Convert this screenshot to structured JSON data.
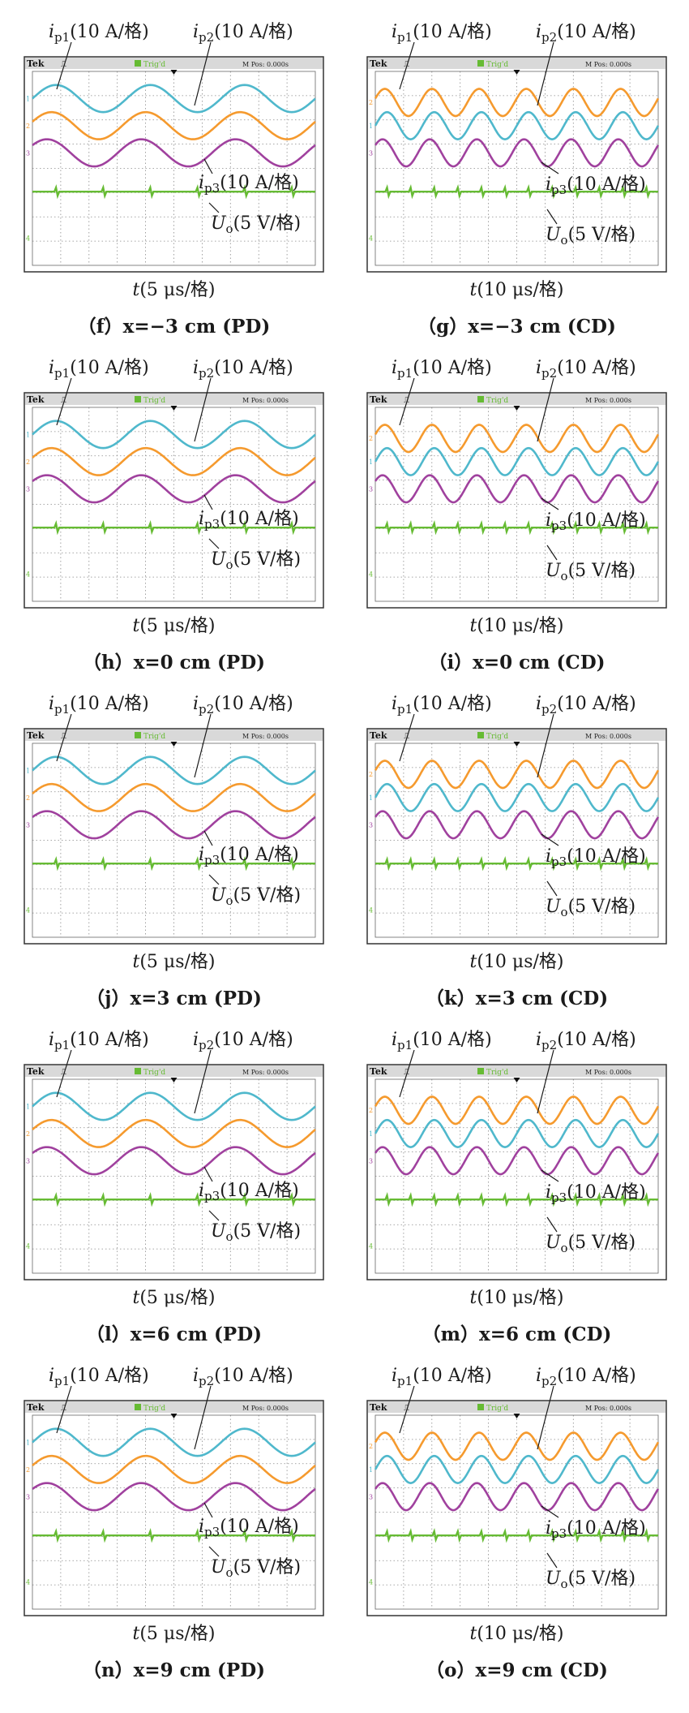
{
  "colors": {
    "ch1": "#4fb8cc",
    "ch2": "#f59a2e",
    "ch3": "#a0419e",
    "ch4": "#66bb33",
    "screen_bg": "#ffffff",
    "status_bar": "#d9d9d9",
    "grid": "#8a8a8a",
    "frame": "#333333"
  },
  "scope_ui": {
    "brand": "Tek",
    "trigger_status": "Trig'd",
    "pulse_glyph": "⎍",
    "ch1_marker": "1",
    "ch2_marker": "2",
    "ch3_marker": "3",
    "ch4_marker": "4"
  },
  "labels": {
    "ip1_main": "i",
    "ip1_sub": "p1",
    "ip1_rest": "(10 A/格)",
    "ip2_main": "i",
    "ip2_sub": "p2",
    "ip2_rest": "(10 A/格)",
    "ip3_main": "i",
    "ip3_sub": "p3",
    "ip3_rest": "(10 A/格)",
    "uo_main": "U",
    "uo_sub": "o",
    "uo_rest": "(5 V/格)"
  },
  "panels": [
    {
      "id": "f",
      "caption": "（f）x=−3 cm (PD)",
      "time_main": "t",
      "time_rest": "(5 μs/格)",
      "mpos": "M Pos: 0.000s",
      "mode": "PD"
    },
    {
      "id": "g",
      "caption": "（g）x=−3 cm (CD)",
      "time_main": "t",
      "time_rest": "(10 μs/格)",
      "mpos": "M Pos: 0.000s",
      "mode": "CD"
    },
    {
      "id": "h",
      "caption": "（h）x=0 cm (PD)",
      "time_main": "t",
      "time_rest": "(5 μs/格)",
      "mpos": "M Pos: 0.000s",
      "mode": "PD"
    },
    {
      "id": "i",
      "caption": "（i）x=0 cm (CD)",
      "time_main": "t",
      "time_rest": "(10 μs/格)",
      "mpos": "M Pos: 0.000s",
      "mode": "CD"
    },
    {
      "id": "j",
      "caption": "（j）x=3 cm (PD)",
      "time_main": "t",
      "time_rest": "(5 μs/格)",
      "mpos": "M Pos: 0.000s",
      "mode": "PD"
    },
    {
      "id": "k",
      "caption": "（k）x=3 cm (CD)",
      "time_main": "t",
      "time_rest": "(10 μs/格)",
      "mpos": "M Pos: 0.000s",
      "mode": "CD"
    },
    {
      "id": "l",
      "caption": "（l）x=6 cm (PD)",
      "time_main": "t",
      "time_rest": "(5 μs/格)",
      "mpos": "M Pos: 0.000s",
      "mode": "PD"
    },
    {
      "id": "m",
      "caption": "（m）x=6 cm (CD)",
      "time_main": "t",
      "time_rest": "(10 μs/格)",
      "mpos": "M Pos: 0.000s",
      "mode": "CD"
    },
    {
      "id": "n",
      "caption": "（n）x=9 cm (PD)",
      "time_main": "t",
      "time_rest": "(5 μs/格)",
      "mpos": "M Pos: 0.000s",
      "mode": "PD"
    },
    {
      "id": "o",
      "caption": "（o）x=9 cm (CD)",
      "time_main": "t",
      "time_rest": "(10 μs/格)",
      "mpos": "M Pos: 0.000s",
      "mode": "CD"
    }
  ]
}
